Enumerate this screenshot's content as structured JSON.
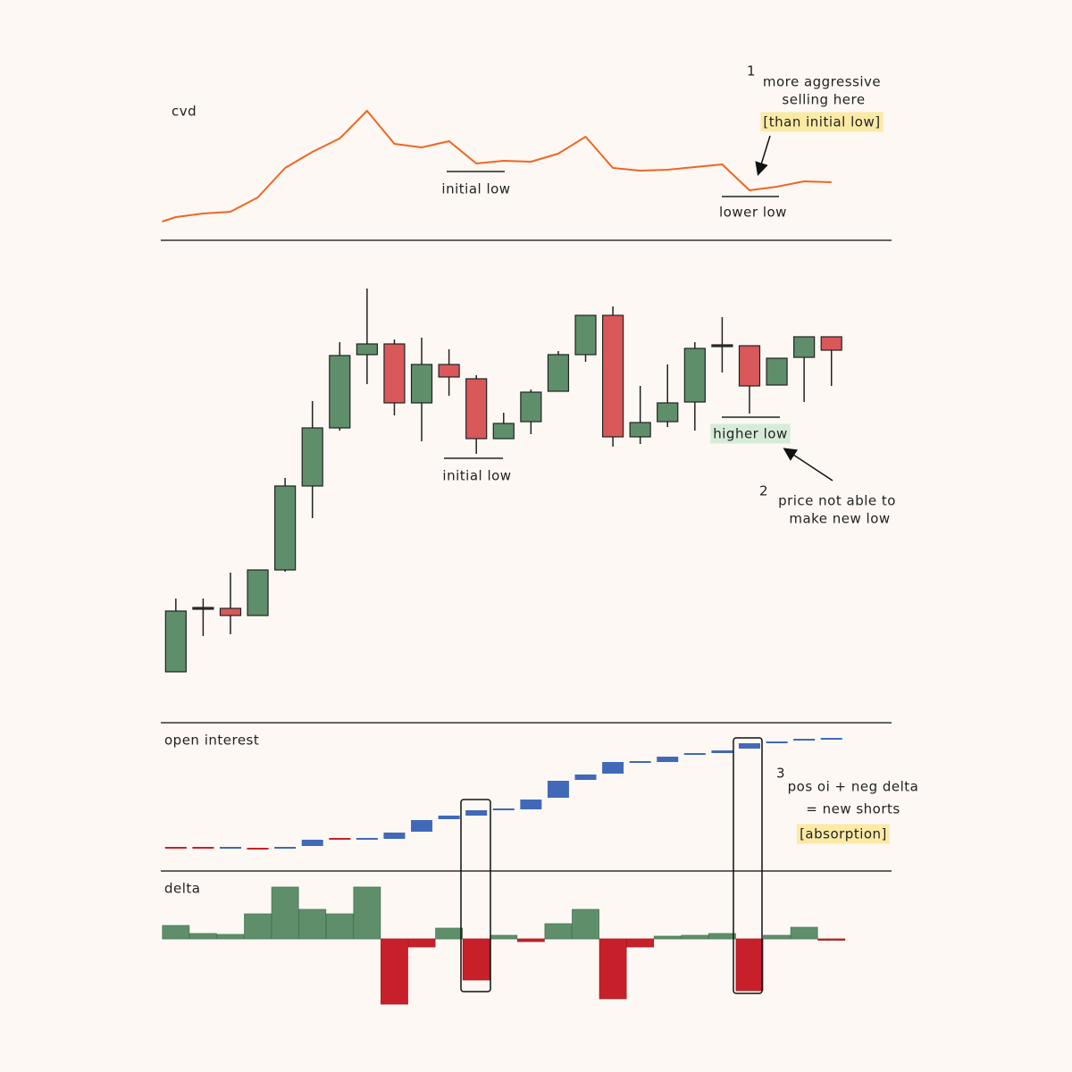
{
  "chart_data": [
    {
      "type": "line",
      "title": "cvd",
      "color": "#f26522",
      "x": [
        -0.5,
        0,
        1,
        2,
        3,
        4,
        5,
        6,
        7,
        8,
        9,
        10,
        11,
        12,
        13,
        14,
        15,
        16,
        17,
        18,
        19,
        20,
        21,
        22,
        23,
        24
      ],
      "values": [
        32,
        37,
        41,
        43,
        59,
        92,
        110,
        125,
        156,
        119,
        115,
        122,
        97,
        100,
        99,
        108,
        127,
        92,
        89,
        90,
        93,
        96,
        67,
        71,
        77,
        76
      ],
      "xlim": [
        -0.55,
        26.2
      ],
      "ylim": [
        0,
        180
      ],
      "annotations": [
        "initial low",
        "lower low",
        "1",
        "more aggressive",
        "selling here",
        "[than initial low]"
      ]
    },
    {
      "type": "candlestick",
      "up_color": "#5e8f6a",
      "down_color": "#d9585a",
      "x": [
        0,
        1,
        2,
        3,
        4,
        5,
        6,
        7,
        8,
        9,
        10,
        11,
        12,
        13,
        14,
        15,
        16,
        17,
        18,
        19,
        20,
        21,
        22,
        23,
        24
      ],
      "open": [
        48,
        119,
        119,
        111,
        162,
        256,
        321,
        403,
        415,
        349,
        392,
        376,
        309,
        328,
        362,
        403,
        447,
        311,
        328,
        350,
        413,
        413,
        369,
        400,
        423
      ],
      "high": [
        130,
        130,
        159,
        162,
        265,
        351,
        417,
        477,
        420,
        422,
        409,
        380,
        338,
        364,
        407,
        447,
        457,
        368,
        392,
        417,
        445,
        413,
        399,
        423,
        423
      ],
      "low": [
        48,
        88,
        90,
        111,
        160,
        220,
        318,
        370,
        335,
        306,
        357,
        292,
        309,
        314,
        362,
        395,
        300,
        303,
        322,
        318,
        383,
        337,
        369,
        350,
        368
      ],
      "close": [
        116,
        119,
        111,
        162,
        256,
        321,
        402,
        415,
        349,
        392,
        378,
        309,
        326,
        361,
        403,
        447,
        311,
        327,
        349,
        410,
        413,
        368,
        399,
        423,
        408
      ],
      "xlim": [
        -0.55,
        26.2
      ],
      "ylim": [
        0,
        500
      ],
      "annotations": [
        "initial low",
        "higher low",
        "2",
        "price not able to",
        "make new low"
      ]
    },
    {
      "type": "candlestick",
      "title": "open interest",
      "up_color": "#4169b8",
      "down_color": "#c8202a",
      "x": [
        0,
        1,
        2,
        3,
        4,
        5,
        6,
        7,
        8,
        9,
        10,
        11,
        12,
        13,
        14,
        15,
        16,
        17,
        18,
        19,
        20,
        21,
        22,
        23,
        24
      ],
      "open": [
        26,
        26,
        25,
        25,
        25,
        28,
        36,
        35,
        36,
        44,
        58,
        62,
        68,
        69,
        82,
        102,
        109,
        121,
        122,
        130,
        132,
        137,
        143,
        145,
        147
      ],
      "close": [
        25,
        25,
        26,
        24,
        26,
        35,
        35,
        36,
        43,
        57,
        62,
        68,
        69,
        80,
        101,
        108,
        122,
        122,
        128,
        131,
        135,
        143,
        144,
        147,
        148
      ],
      "xlim": [
        -0.55,
        26.2
      ],
      "ylim": [
        0,
        165
      ],
      "annotations": [
        "3",
        "pos oi + neg delta",
        "= new shorts",
        "[absorption]"
      ]
    },
    {
      "type": "bar",
      "title": "delta",
      "up_color": "#5e8f6a",
      "down_color": "#c8202a",
      "x": [
        0,
        1,
        2,
        3,
        4,
        5,
        6,
        7,
        8,
        9,
        10,
        11,
        12,
        13,
        14,
        15,
        16,
        17,
        18,
        19,
        20,
        21,
        22,
        23,
        24
      ],
      "values": [
        15,
        6,
        5,
        28,
        58,
        33,
        28,
        58,
        -73,
        -9,
        12,
        -46,
        4,
        -3,
        17,
        33,
        -67,
        -9,
        3,
        4,
        6,
        -58,
        4,
        13,
        -1
      ],
      "xlim": [
        -0.55,
        26.2
      ],
      "ylim": [
        -80,
        65
      ]
    }
  ]
}
